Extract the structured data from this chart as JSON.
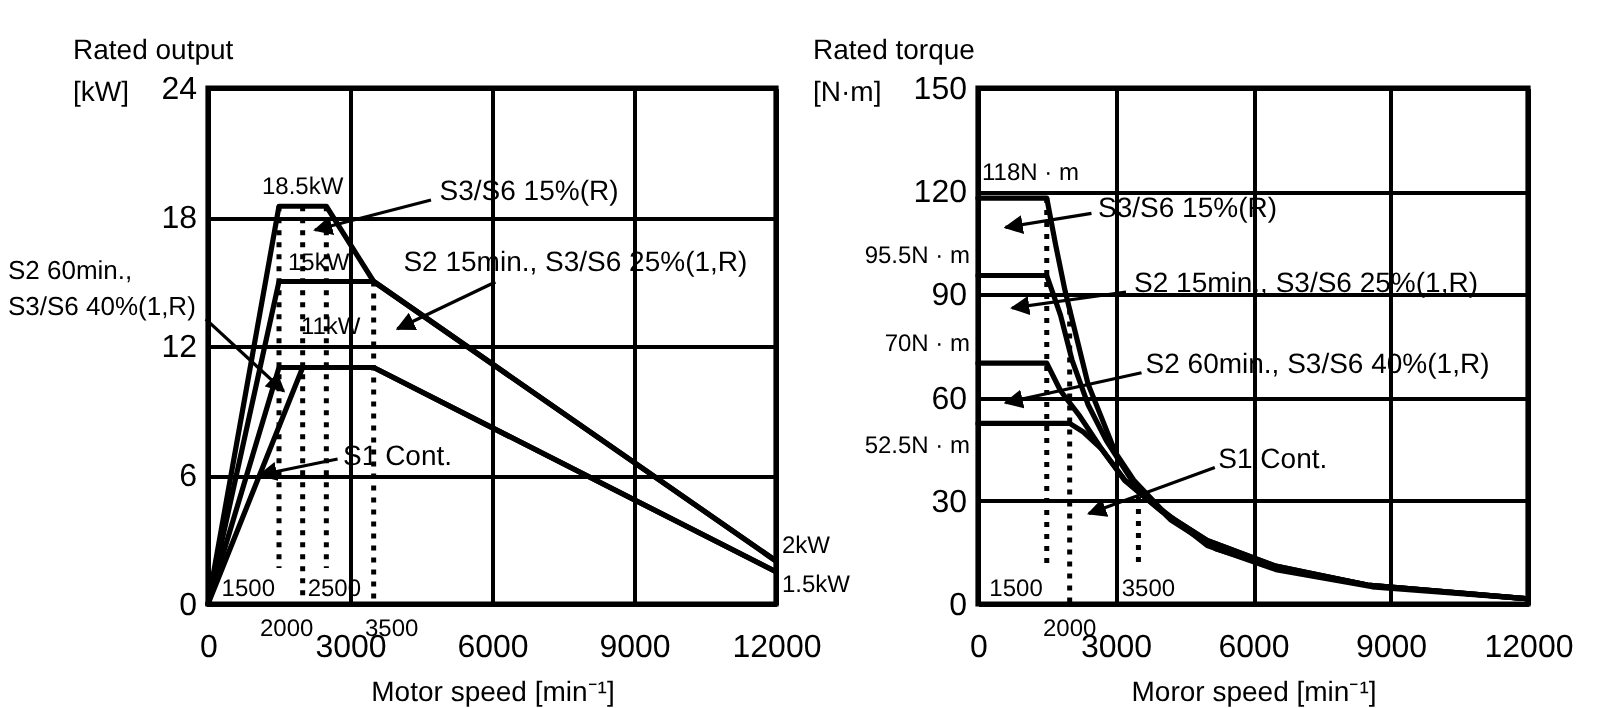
{
  "chart_data": [
    {
      "type": "line",
      "xlabel": "Motor speed [min⁻¹]",
      "ylabel": "Rated output\n[kW]",
      "xlim": [
        0,
        12000
      ],
      "xticks": [
        0,
        3000,
        6000,
        9000,
        12000
      ],
      "ylim": [
        0,
        24
      ],
      "yticks": [
        0,
        6,
        12,
        18,
        24
      ],
      "grid": true,
      "series": [
        {
          "color": "#000000",
          "x": [
            0,
            1500,
            2500,
            3500,
            12000
          ],
          "values": [
            0,
            18.5,
            18.5,
            15,
            2
          ]
        },
        {
          "color": "#000000",
          "x": [
            0,
            1500,
            3500,
            12000
          ],
          "values": [
            0,
            15,
            15,
            2
          ]
        },
        {
          "color": "#000000",
          "x": [
            0,
            1500,
            3500,
            12000
          ],
          "values": [
            0,
            11,
            11,
            1.5
          ]
        },
        {
          "color": "#000000",
          "x": [
            0,
            2000,
            3500,
            12000
          ],
          "values": [
            0,
            11,
            11,
            1.5
          ]
        }
      ],
      "ref_lines": [
        {
          "axis": "x",
          "value": 1500,
          "label": "1500",
          "color": "#000000",
          "line_style": "dotted"
        },
        {
          "axis": "x",
          "value": 2000,
          "label": "2000",
          "color": "#000000",
          "line_style": "dotted"
        },
        {
          "axis": "x",
          "value": 2500,
          "label": "2500",
          "color": "#000000",
          "line_style": "dotted"
        },
        {
          "axis": "x",
          "value": 3500,
          "label": "3500",
          "color": "#000000",
          "line_style": "dotted"
        }
      ],
      "annotations": [
        {
          "text": "18.5kW",
          "x": 2000,
          "y": 18.5
        },
        {
          "text": "15kW",
          "x": 2000,
          "y": 15
        },
        {
          "text": "11kW",
          "x": 2000,
          "y": 11
        },
        {
          "text": "2kW",
          "x": 12000,
          "y": 2
        },
        {
          "text": "1.5kW",
          "x": 12000,
          "y": 1.5
        },
        "S3/S6 15%(R)",
        "S2 15min., S3/S6 25%(1,R)",
        {
          "text": "S2 60min.,\nS3/S6 40%(1,R)",
          "x": 1600,
          "y": 9.9
        },
        {
          "text": "S1 Cont.",
          "x": 1090,
          "y": 6
        }
      ]
    },
    {
      "type": "line",
      "xlabel": "Moror speed [min⁻¹]",
      "ylabel": "Rated torque\n[N·m]",
      "xlim": [
        0,
        12000
      ],
      "xticks": [
        0,
        3000,
        6000,
        9000,
        12000
      ],
      "ylim": [
        0,
        150
      ],
      "yticks": [
        0,
        30,
        60,
        90,
        120,
        150
      ],
      "grid": true,
      "series": [
        {
          "color": "#000000",
          "x": [
            0,
            1500,
            1700,
            1900,
            2400,
            3000,
            3400,
            4000,
            5000,
            6500,
            8600,
            12000
          ],
          "values": [
            118,
            118,
            104,
            91,
            64,
            44,
            36,
            27.5,
            17,
            10,
            5,
            1.5
          ]
        },
        {
          "color": "#000000",
          "x": [
            0,
            1500,
            1800,
            2050,
            2400,
            2800,
            3400,
            4200,
            5200,
            6400,
            8500,
            12000
          ],
          "values": [
            95.5,
            95.5,
            84,
            71,
            58,
            47.5,
            35,
            24.5,
            16,
            11,
            5.5,
            1.5
          ]
        },
        {
          "color": "#000000",
          "x": [
            0,
            1500,
            1800,
            2200,
            2700,
            3200,
            4000,
            5000,
            6500,
            8500,
            12000
          ],
          "values": [
            70,
            70,
            62,
            55,
            45,
            36,
            27,
            18.5,
            11,
            5.5,
            1.5
          ]
        },
        {
          "color": "#000000",
          "x": [
            0,
            2000,
            2300,
            2700,
            3200,
            4000,
            5000,
            6500,
            8500,
            12000
          ],
          "values": [
            52.5,
            52.5,
            50,
            45,
            36,
            27,
            18.5,
            11,
            5.5,
            1.5
          ]
        }
      ],
      "ref_lines": [
        {
          "axis": "x",
          "value": 1500,
          "label": "1500",
          "color": "#000000",
          "line_style": "dotted"
        },
        {
          "axis": "x",
          "value": 2000,
          "label": "2000",
          "color": "#000000",
          "line_style": "dotted"
        },
        {
          "axis": "x",
          "value": 3500,
          "label": "3500",
          "color": "#000000",
          "line_style": "dotted"
        }
      ],
      "annotations": [
        {
          "text": "118N · m",
          "x": 0,
          "y": 118
        },
        {
          "text": "95.5N · m",
          "x": 0,
          "y": 95.5
        },
        {
          "text": "70N · m",
          "x": 0,
          "y": 70
        },
        {
          "text": "52.5N · m",
          "x": 0,
          "y": 52.5
        },
        "S3/S6 15%(R)",
        "S2 15min., S3/S6 25%(1,R)",
        "S2 60min., S3/S6 40%(1,R)",
        "S1 Cont."
      ]
    }
  ]
}
